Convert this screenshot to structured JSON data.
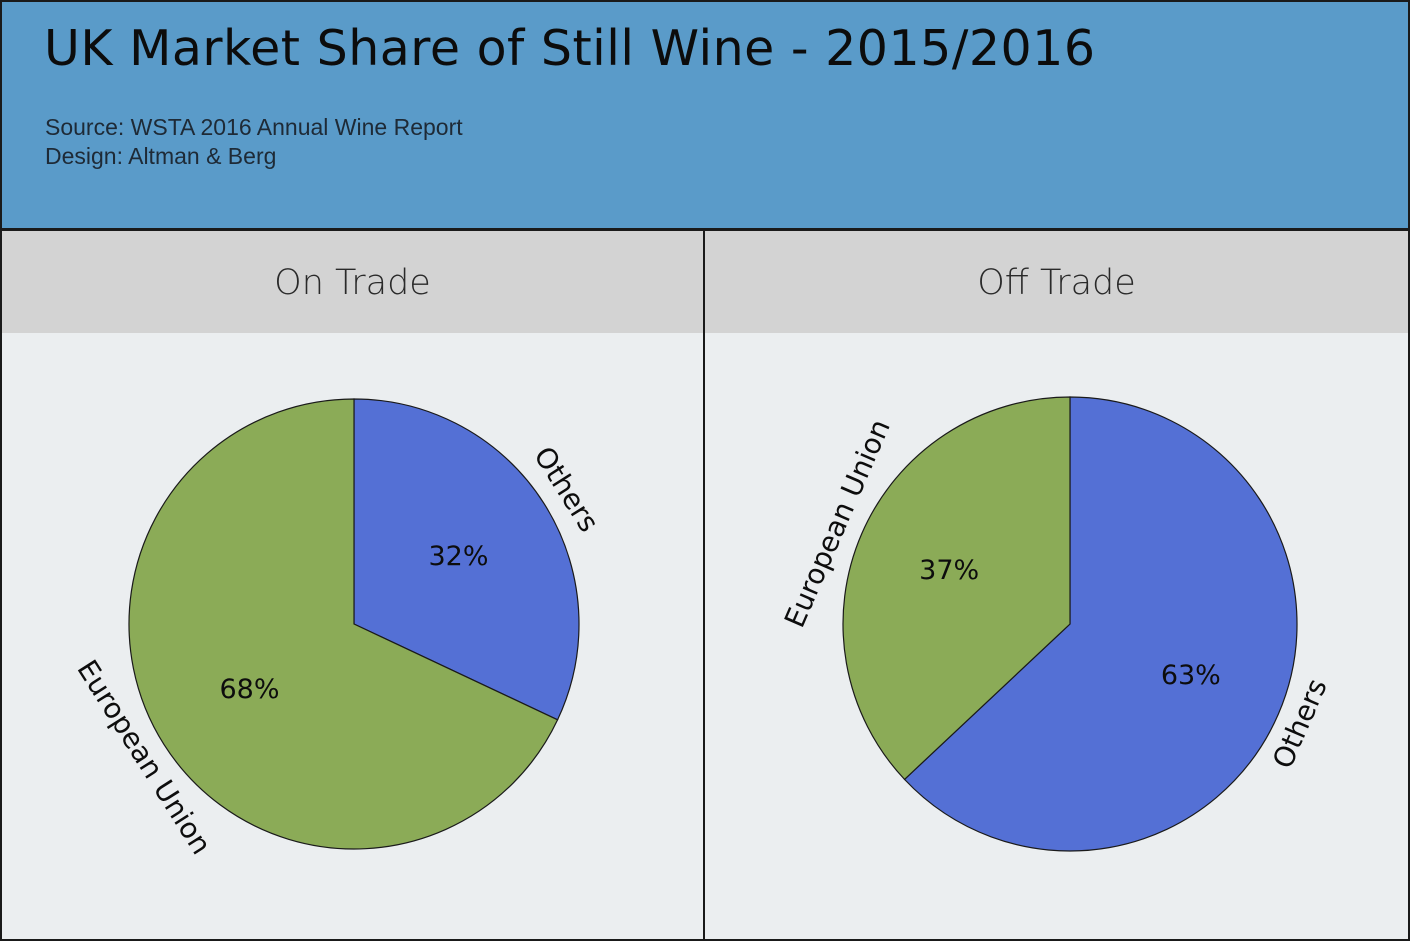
{
  "header": {
    "title": "UK Market Share of Still Wine - 2015/2016",
    "source": "Source: WSTA 2016 Annual Wine Report",
    "design": "Design: Altman & Berg",
    "background_color": "#5a9bc9"
  },
  "colors": {
    "Others": "#5470d5",
    "European Union": "#8bab57",
    "panel_header": "#d3d3d3",
    "panel_body": "#ebeef0"
  },
  "chart_data": [
    {
      "type": "pie",
      "title": "On Trade",
      "start_angle_deg": 0,
      "slices": [
        {
          "label": "Others",
          "value": 32,
          "display": "32%"
        },
        {
          "label": "European Union",
          "value": 68,
          "display": "68%"
        }
      ]
    },
    {
      "type": "pie",
      "title": "Off Trade",
      "start_angle_deg": 0,
      "slices": [
        {
          "label": "Others",
          "value": 63,
          "display": "63%"
        },
        {
          "label": "European Union",
          "value": 37,
          "display": "37%"
        }
      ]
    }
  ]
}
